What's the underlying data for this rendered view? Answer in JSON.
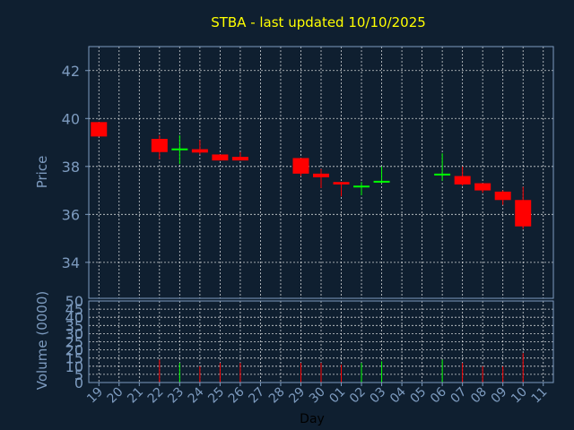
{
  "colors": {
    "background": "#0f1f30",
    "axes": "#7d9bbf",
    "grid": "#ffffff",
    "up": "#00ff00",
    "down": "#ff0000",
    "title": "#ffff00",
    "xlabel": "#000000"
  },
  "chart_data": {
    "type": "candlestick",
    "title": "STBA - last updated 10/10/2025",
    "xlabel": "Day",
    "ylabel": "Price",
    "volume_label": "Volume (0000)",
    "grid": true,
    "ylim": [
      32.5,
      43
    ],
    "yticks": [
      "34",
      "36",
      "38",
      "40",
      "42"
    ],
    "volume_ylim": [
      0,
      50
    ],
    "volume_yticks": [
      "0",
      "5",
      "10",
      "15",
      "20",
      "25",
      "30",
      "35",
      "40",
      "45",
      "50"
    ],
    "days": [
      "19",
      "20",
      "21",
      "22",
      "23",
      "24",
      "25",
      "26",
      "27",
      "28",
      "29",
      "30",
      "01",
      "02",
      "03",
      "04",
      "05",
      "06",
      "07",
      "08",
      "09",
      "10",
      "11"
    ],
    "candles": [
      {
        "day": "19",
        "open": 39.85,
        "close": 39.25,
        "high": 39.85,
        "low": 39.25,
        "volume": 0
      },
      {
        "day": "22",
        "open": 39.15,
        "close": 38.6,
        "high": 39.3,
        "low": 38.3,
        "volume": 14
      },
      {
        "day": "23",
        "open": 38.7,
        "close": 38.75,
        "high": 39.3,
        "low": 38.1,
        "volume": 12
      },
      {
        "day": "24",
        "open": 38.72,
        "close": 38.58,
        "high": 39.1,
        "low": 38.5,
        "volume": 10
      },
      {
        "day": "25",
        "open": 38.5,
        "close": 38.25,
        "high": 38.5,
        "low": 38.25,
        "volume": 12
      },
      {
        "day": "26",
        "open": 38.4,
        "close": 38.25,
        "high": 38.6,
        "low": 38.25,
        "volume": 12
      },
      {
        "day": "29",
        "open": 38.35,
        "close": 37.7,
        "high": 38.35,
        "low": 37.6,
        "volume": 12
      },
      {
        "day": "30",
        "open": 37.7,
        "close": 37.55,
        "high": 37.9,
        "low": 37.1,
        "volume": 12
      },
      {
        "day": "01",
        "open": 37.35,
        "close": 37.25,
        "high": 37.35,
        "low": 36.75,
        "volume": 11
      },
      {
        "day": "02",
        "open": 37.15,
        "close": 37.2,
        "high": 37.35,
        "low": 36.8,
        "volume": 12
      },
      {
        "day": "03",
        "open": 37.35,
        "close": 37.4,
        "high": 38.0,
        "low": 37.3,
        "volume": 13
      },
      {
        "day": "06",
        "open": 37.65,
        "close": 37.7,
        "high": 38.55,
        "low": 37.4,
        "volume": 14
      },
      {
        "day": "07",
        "open": 37.6,
        "close": 37.25,
        "high": 38.0,
        "low": 37.2,
        "volume": 12
      },
      {
        "day": "08",
        "open": 37.3,
        "close": 37.0,
        "high": 37.3,
        "low": 36.9,
        "volume": 10
      },
      {
        "day": "09",
        "open": 36.95,
        "close": 36.6,
        "high": 37.0,
        "low": 36.4,
        "volume": 10
      },
      {
        "day": "10",
        "open": 36.6,
        "close": 35.5,
        "high": 37.15,
        "low": 35.4,
        "volume": 18
      }
    ]
  }
}
